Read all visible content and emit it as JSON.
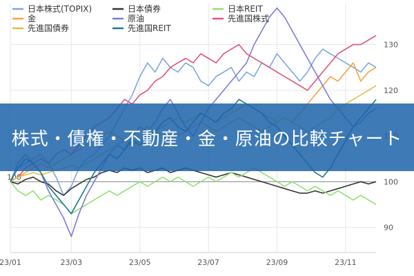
{
  "chart_data": {
    "type": "line",
    "title": "",
    "xlabel": "",
    "ylabel": "",
    "x_tick_labels": [
      "23/01",
      "23/03",
      "23/05",
      "23/07",
      "23/09",
      "23/11"
    ],
    "x_tick_at_point": [
      0,
      8,
      17,
      26,
      35,
      44
    ],
    "y_tick_labels": [
      "90",
      "100",
      "110",
      "120",
      "130"
    ],
    "y_ticks": [
      90,
      100,
      110,
      120,
      130
    ],
    "ylim": [
      84.5,
      139
    ],
    "baseline": 100,
    "baseline_label": "100",
    "grid": true,
    "legend_position": "top",
    "series": [
      {
        "name": "日本株式(TOPIX)",
        "color": "#7aa7e0",
        "values": [
          100,
          103,
          104,
          105,
          106,
          104,
          101,
          97,
          99,
          103,
          105,
          106,
          108,
          110,
          113,
          116,
          119,
          123,
          126,
          124,
          127,
          125,
          124,
          126,
          125,
          122,
          121,
          123,
          124,
          125,
          122,
          124,
          123,
          126,
          125,
          128,
          126,
          124,
          122,
          124,
          127,
          129,
          128,
          127,
          126,
          125,
          124,
          126,
          125
        ]
      },
      {
        "name": "日本債券",
        "color": "#333333",
        "values": [
          100,
          99.5,
          100.5,
          101,
          100,
          99.5,
          98,
          97,
          98.5,
          99.5,
          100.5,
          101,
          102,
          102.5,
          102,
          103,
          102.5,
          103,
          102,
          102.5,
          103,
          102,
          102.5,
          103,
          102.5,
          102,
          101.5,
          101,
          101.5,
          102,
          101.5,
          101,
          100.5,
          100,
          99.5,
          99,
          98.5,
          98,
          97.5,
          97.5,
          98,
          97.5,
          98,
          98.5,
          99,
          99.5,
          100,
          99.5,
          100
        ]
      },
      {
        "name": "日本REIT",
        "color": "#90e070",
        "values": [
          100,
          98,
          97,
          98,
          96,
          97,
          96,
          95,
          93,
          94,
          95,
          96,
          97,
          98,
          97,
          98,
          99,
          100,
          99,
          100,
          101,
          100,
          101,
          100,
          99,
          100,
          101,
          100,
          101,
          102,
          101,
          102,
          103,
          102,
          101,
          100,
          99,
          100,
          99,
          98,
          99,
          98,
          97,
          98,
          97,
          96,
          97,
          96,
          95
        ]
      },
      {
        "name": "金",
        "color": "#f5a23c",
        "values": [
          100,
          101,
          102,
          103,
          104,
          103,
          104,
          105,
          106,
          107,
          108,
          109,
          110,
          111,
          110,
          109,
          108,
          109,
          110,
          111,
          110,
          109,
          110,
          111,
          112,
          113,
          112,
          111,
          112,
          113,
          114,
          113,
          112,
          111,
          112,
          113,
          114,
          113,
          115,
          117,
          119,
          121,
          123,
          122,
          124,
          126,
          122,
          124,
          125
        ]
      },
      {
        "name": "原油",
        "color": "#7a7ad8",
        "values": [
          100,
          104,
          106,
          104,
          102,
          98,
          95,
          92,
          88,
          93,
          97,
          100,
          103,
          106,
          108,
          107,
          110,
          112,
          111,
          113,
          116,
          118,
          115,
          112,
          110,
          113,
          116,
          118,
          120,
          122,
          124,
          126,
          130,
          133,
          136,
          138,
          136,
          133,
          130,
          127,
          124,
          121,
          118,
          116,
          114,
          112,
          113,
          115,
          116
        ]
      },
      {
        "name": "先進国株式",
        "color": "#e0507a",
        "values": [
          100,
          101,
          103,
          104,
          105,
          104,
          106,
          107,
          106,
          108,
          110,
          112,
          113,
          114,
          116,
          118,
          117,
          119,
          120,
          122,
          123,
          125,
          126,
          127,
          126,
          128,
          127,
          126,
          128,
          129,
          130,
          128,
          127,
          126,
          125,
          124,
          123,
          122,
          121,
          120,
          122,
          124,
          126,
          128,
          129,
          130,
          130,
          131,
          132
        ]
      },
      {
        "name": "先進国債券",
        "color": "#e0c040",
        "values": [
          100,
          101,
          101.5,
          102,
          101.5,
          102,
          102.5,
          103,
          103.5,
          103,
          104,
          105,
          106,
          107,
          108,
          109,
          110,
          111,
          112,
          111,
          112,
          113,
          114,
          113,
          114,
          115,
          114,
          113,
          114,
          115,
          116,
          117,
          116,
          115,
          114,
          113,
          114,
          113,
          112,
          111,
          112,
          113,
          114,
          116,
          117,
          118,
          119,
          120,
          121
        ]
      },
      {
        "name": "先進国REIT",
        "color": "#1a7a8a",
        "values": [
          100,
          103,
          105,
          104,
          102,
          99,
          97,
          95,
          93,
          96,
          99,
          102,
          104,
          106,
          105,
          107,
          109,
          108,
          110,
          111,
          113,
          114,
          112,
          111,
          113,
          115,
          114,
          113,
          115,
          116,
          118,
          117,
          116,
          115,
          113,
          112,
          110,
          108,
          106,
          104,
          102,
          101,
          103,
          106,
          109,
          112,
          114,
          116,
          118
        ]
      }
    ]
  },
  "banner": {
    "text": "株式・債権・不動産・金・原油の比較チャート"
  }
}
